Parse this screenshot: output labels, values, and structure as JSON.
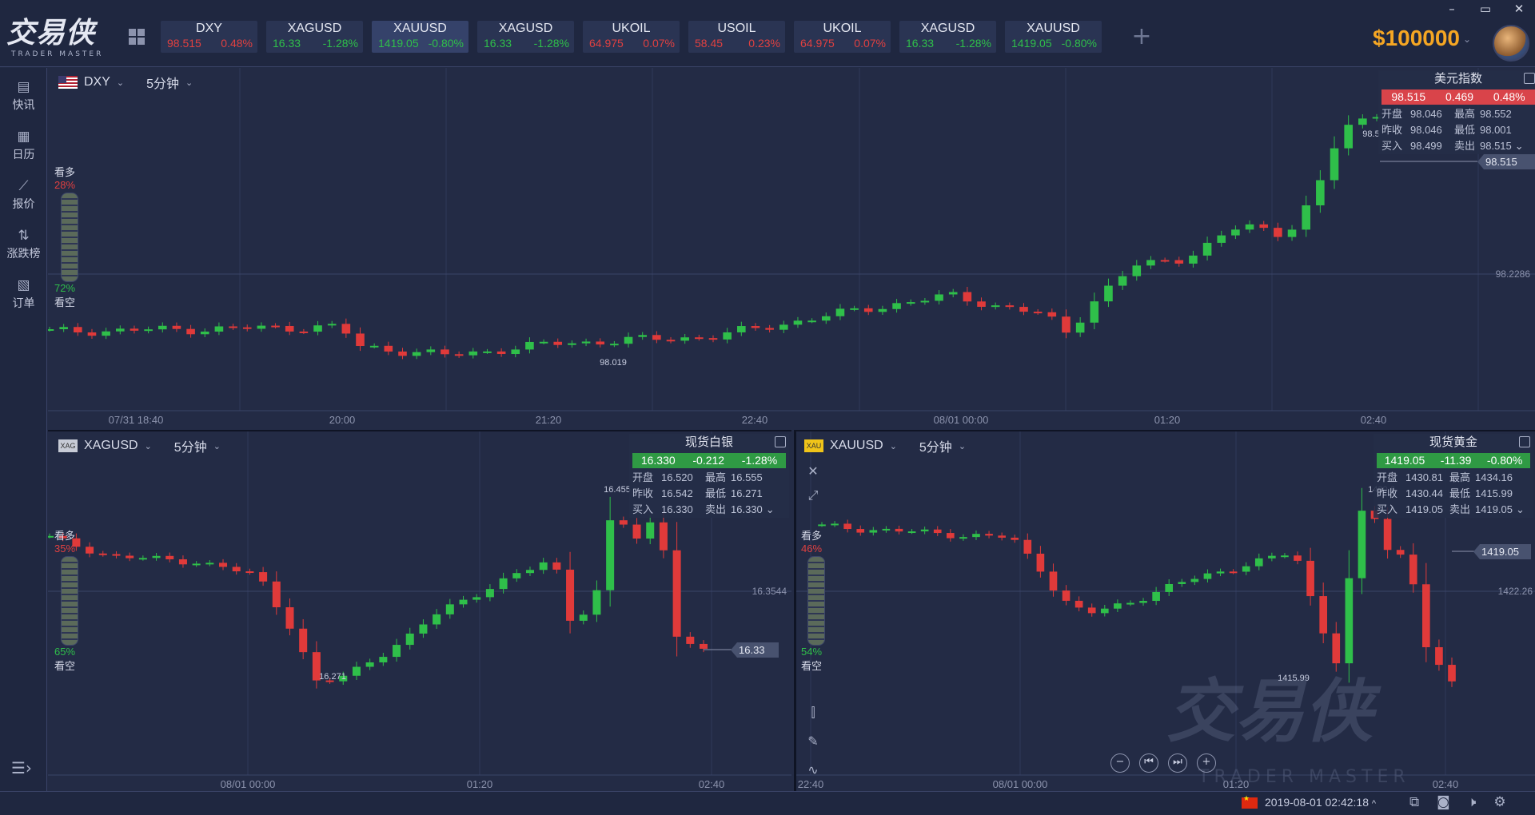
{
  "app": {
    "logo_main": "交易侠",
    "logo_sub": "TRADER MASTER",
    "balance": "$100000"
  },
  "window_controls": [
    "–",
    "▭",
    "✕"
  ],
  "tickers": [
    {
      "sym": "DXY",
      "price": "98.515",
      "chg": "0.48%",
      "dir": "dn",
      "active": false
    },
    {
      "sym": "XAGUSD",
      "price": "16.33",
      "chg": "-1.28%",
      "dir": "up",
      "active": false
    },
    {
      "sym": "XAUUSD",
      "price": "1419.05",
      "chg": "-0.80%",
      "dir": "up",
      "active": true
    },
    {
      "sym": "XAGUSD",
      "price": "16.33",
      "chg": "-1.28%",
      "dir": "up",
      "active": false
    },
    {
      "sym": "UKOIL",
      "price": "64.975",
      "chg": "0.07%",
      "dir": "dn",
      "active": false
    },
    {
      "sym": "USOIL",
      "price": "58.45",
      "chg": "0.23%",
      "dir": "dn",
      "active": false
    },
    {
      "sym": "UKOIL",
      "price": "64.975",
      "chg": "0.07%",
      "dir": "dn",
      "active": false
    },
    {
      "sym": "XAGUSD",
      "price": "16.33",
      "chg": "-1.28%",
      "dir": "up",
      "active": false
    },
    {
      "sym": "XAUUSD",
      "price": "1419.05",
      "chg": "-0.80%",
      "dir": "up",
      "active": false
    }
  ],
  "sidebar": [
    {
      "label": "快讯",
      "icon": "news-icon"
    },
    {
      "label": "日历",
      "icon": "calendar-icon"
    },
    {
      "label": "报价",
      "icon": "quote-icon"
    },
    {
      "label": "涨跌榜",
      "icon": "updown-icon"
    },
    {
      "label": "订单",
      "icon": "order-icon"
    }
  ],
  "colors": {
    "up": "#2fbf4a",
    "down": "#e04040",
    "bg": "#232b45",
    "grid": "#2e3756"
  },
  "panels": {
    "top": {
      "symbol": "DXY",
      "timeframe": "5分钟",
      "bull_label": "看多",
      "bull_pct": "28%",
      "bear_label": "看空",
      "bear_pct": "72%",
      "info": {
        "title": "美元指数",
        "price": "98.515",
        "chg": "0.469",
        "pct": "0.48%",
        "dir": "dn",
        "open_l": "开盘",
        "open": "98.046",
        "high_l": "最高",
        "high": "98.552",
        "prev_l": "昨收",
        "prev": "98.046",
        "low_l": "最低",
        "low": "98.001",
        "bid_l": "买入",
        "bid": "98.499",
        "ask_l": "卖出",
        "ask": "98.515"
      },
      "last_price": "98.515",
      "axis_value": "98.2286",
      "hi_label": "98.5",
      "lo_label": "98.019",
      "x_ticks": [
        "07/31 18:40",
        "20:00",
        "21:20",
        "22:40",
        "08/01 00:00",
        "01:20",
        "02:40"
      ]
    },
    "bl": {
      "symbol": "XAGUSD",
      "timeframe": "5分钟",
      "bull_label": "看多",
      "bull_pct": "35%",
      "bear_label": "看空",
      "bear_pct": "65%",
      "info": {
        "title": "现货白银",
        "price": "16.330",
        "chg": "-0.212",
        "pct": "-1.28%",
        "dir": "up",
        "open_l": "开盘",
        "open": "16.520",
        "high_l": "最高",
        "high": "16.555",
        "prev_l": "昨收",
        "prev": "16.542",
        "low_l": "最低",
        "low": "16.271",
        "bid_l": "买入",
        "bid": "16.330",
        "ask_l": "卖出",
        "ask": "16.330"
      },
      "last_price": "16.33",
      "axis_value": "16.3544",
      "hi_label": "16.455",
      "lo_label": "16.271",
      "x_ticks": [
        "08/01 00:00",
        "01:20",
        "02:40"
      ]
    },
    "br": {
      "symbol": "XAUUSD",
      "timeframe": "5分钟",
      "bull_label": "看多",
      "bull_pct": "46%",
      "bear_label": "看空",
      "bear_pct": "54%",
      "info": {
        "title": "现货黄金",
        "price": "1419.05",
        "chg": "-11.39",
        "pct": "-0.80%",
        "dir": "up",
        "open_l": "开盘",
        "open": "1430.81",
        "high_l": "最高",
        "high": "1434.16",
        "prev_l": "昨收",
        "prev": "1430.44",
        "low_l": "最低",
        "low": "1415.99",
        "bid_l": "买入",
        "bid": "1419.05",
        "ask_l": "卖出",
        "ask": "1419.05"
      },
      "last_price": "1419.05",
      "axis_value": "1422.26",
      "hi_label": "1430.6",
      "lo_label": "1415.99",
      "x_ticks": [
        "22:40",
        "08/01 00:00",
        "01:20",
        "02:40"
      ]
    }
  },
  "status": {
    "datetime": "2019-08-01 02:42:18"
  }
}
